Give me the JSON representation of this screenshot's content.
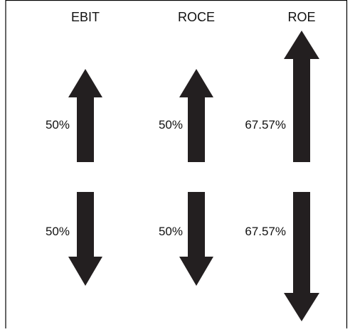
{
  "columns": [
    {
      "id": "ebit",
      "header": "EBIT",
      "up_pct": "50%",
      "down_pct": "50%"
    },
    {
      "id": "roce",
      "header": "ROCE",
      "up_pct": "50%",
      "down_pct": "50%"
    },
    {
      "id": "roe",
      "header": "ROE",
      "up_pct": "67.57%",
      "down_pct": "67.57%"
    }
  ],
  "colors": {
    "arrow": "#231f20",
    "frame": "#000000",
    "background": "#ffffff"
  }
}
